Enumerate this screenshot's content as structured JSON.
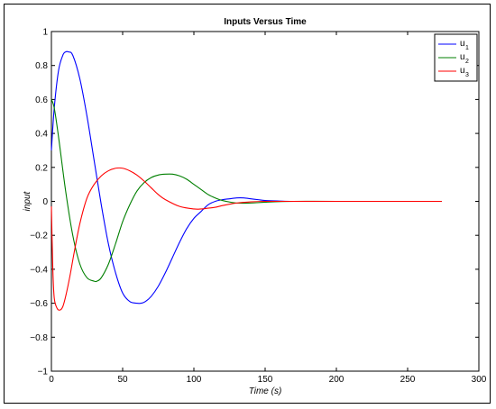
{
  "chart_data": {
    "type": "line",
    "title": "Inputs Versus Time",
    "xlabel": "Time (s)",
    "ylabel": "input",
    "xlim": [
      0,
      300
    ],
    "ylim": [
      -1,
      1
    ],
    "xticks": [
      0,
      50,
      100,
      150,
      200,
      250,
      300
    ],
    "yticks": [
      -1,
      -0.8,
      -0.6,
      -0.4,
      -0.2,
      0,
      0.2,
      0.4,
      0.6,
      0.8,
      1
    ],
    "xtick_labels": [
      "0",
      "50",
      "100",
      "150",
      "200",
      "250",
      "300"
    ],
    "ytick_labels": [
      "−1",
      "−0.8",
      "−0.6",
      "−0.4",
      "−0.2",
      "0",
      "0.2",
      "0.4",
      "0.6",
      "0.8",
      "1"
    ],
    "grid": false,
    "legend_position": "top-right",
    "series": [
      {
        "name": "u1",
        "label_main": "u",
        "label_sub": "1",
        "color": "#0000ff",
        "x": [
          0,
          2,
          5,
          8,
          10,
          12,
          15,
          20,
          25,
          30,
          35,
          40,
          45,
          50,
          55,
          60,
          63,
          66,
          70,
          75,
          80,
          85,
          90,
          95,
          100,
          105,
          110,
          115,
          120,
          125,
          130,
          135,
          140,
          145,
          150,
          160,
          170,
          200,
          274
        ],
        "y": [
          0.3,
          0.55,
          0.77,
          0.86,
          0.88,
          0.88,
          0.86,
          0.72,
          0.5,
          0.24,
          -0.02,
          -0.25,
          -0.42,
          -0.54,
          -0.59,
          -0.6,
          -0.6,
          -0.59,
          -0.56,
          -0.5,
          -0.42,
          -0.33,
          -0.24,
          -0.16,
          -0.1,
          -0.06,
          -0.02,
          0.0,
          0.01,
          0.015,
          0.02,
          0.02,
          0.015,
          0.01,
          0.005,
          0.002,
          0.0,
          0.0,
          0.0
        ]
      },
      {
        "name": "u2",
        "label_main": "u",
        "label_sub": "2",
        "color": "#007f00",
        "x": [
          0,
          2,
          5,
          10,
          15,
          20,
          25,
          30,
          32,
          35,
          40,
          45,
          50,
          55,
          60,
          65,
          70,
          75,
          80,
          85,
          90,
          95,
          100,
          105,
          110,
          115,
          120,
          130,
          140,
          150,
          170,
          200,
          274
        ],
        "y": [
          0.6,
          0.55,
          0.38,
          0.06,
          -0.2,
          -0.37,
          -0.45,
          -0.47,
          -0.47,
          -0.45,
          -0.37,
          -0.25,
          -0.12,
          -0.02,
          0.06,
          0.11,
          0.14,
          0.155,
          0.16,
          0.16,
          0.15,
          0.13,
          0.1,
          0.07,
          0.04,
          0.02,
          0.005,
          -0.01,
          -0.01,
          -0.005,
          0.0,
          0.0,
          0.0
        ]
      },
      {
        "name": "u3",
        "label_main": "u",
        "label_sub": "3",
        "color": "#ff0000",
        "x": [
          0,
          1,
          2,
          4,
          6,
          8,
          10,
          13,
          16,
          20,
          25,
          30,
          35,
          40,
          45,
          50,
          55,
          60,
          65,
          70,
          75,
          80,
          90,
          100,
          105,
          110,
          115,
          120,
          130,
          140,
          150,
          170,
          200,
          274
        ],
        "y": [
          -0.03,
          -0.4,
          -0.57,
          -0.63,
          -0.64,
          -0.62,
          -0.56,
          -0.44,
          -0.3,
          -0.13,
          0.02,
          0.1,
          0.15,
          0.18,
          0.195,
          0.195,
          0.18,
          0.155,
          0.12,
          0.08,
          0.04,
          0.01,
          -0.03,
          -0.045,
          -0.045,
          -0.04,
          -0.035,
          -0.025,
          -0.01,
          -0.003,
          0.0,
          0.0,
          0.0,
          0.0
        ]
      }
    ]
  }
}
